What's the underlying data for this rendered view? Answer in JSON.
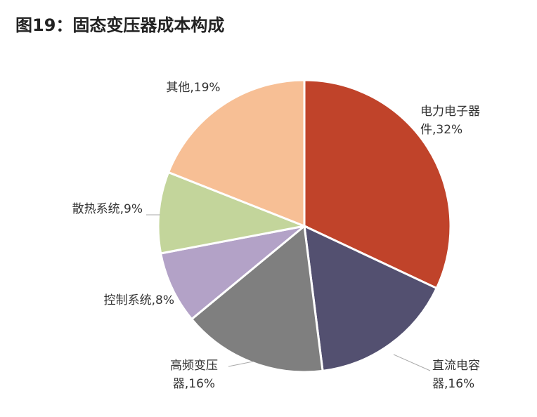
{
  "chart_data": {
    "type": "pie",
    "title": "图19：固态变压器成本构成",
    "values": [
      32,
      16,
      16,
      8,
      9,
      19
    ],
    "value_labels": [
      "电力电子器件,32%",
      "直流电容器,16%",
      "高频变压器,16%",
      "控制系统,8%",
      "散热系统,9%",
      "其他,19%"
    ],
    "colors": [
      "#c0432a",
      "#535070",
      "#7f7f7f",
      "#b3a2c7",
      "#c3d59b",
      "#f7bf95"
    ]
  }
}
